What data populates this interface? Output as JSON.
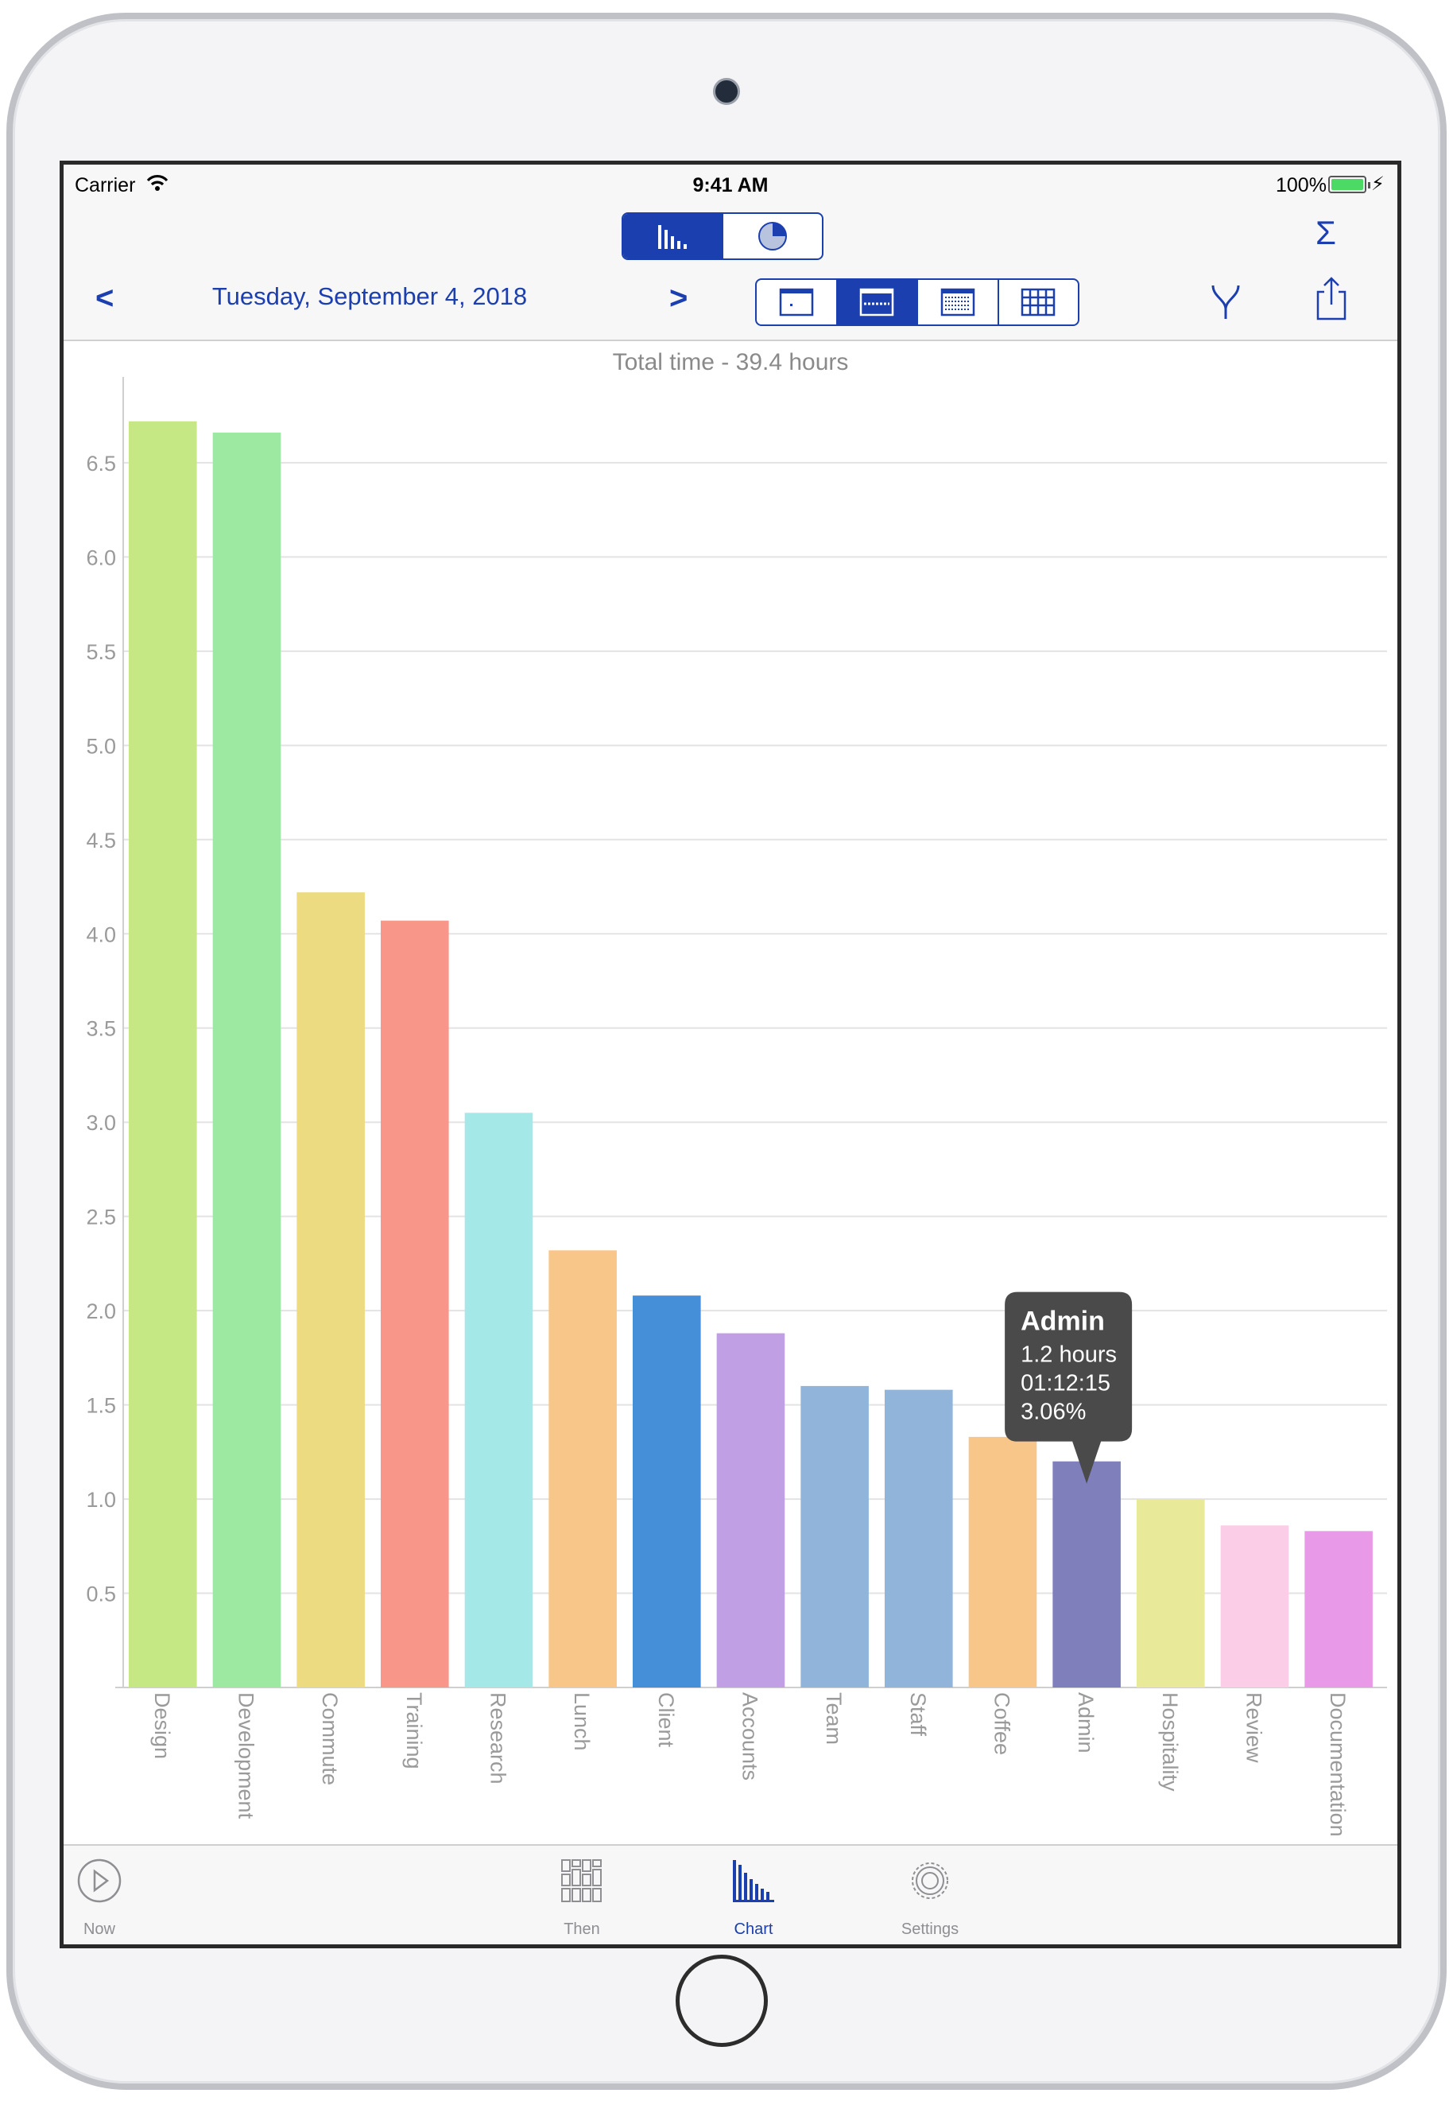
{
  "status_bar": {
    "carrier": "Carrier",
    "time": "9:41 AM",
    "battery": "100%"
  },
  "toolbar": {
    "view_toggle": [
      {
        "name": "bar-chart-icon",
        "active": true
      },
      {
        "name": "pie-chart-icon",
        "active": false
      }
    ],
    "sum_icon": "Σ",
    "prev_label": "<",
    "next_label": ">",
    "date": "Tuesday, September 4, 2018",
    "period_selector": [
      {
        "name": "day-period-icon",
        "active": false
      },
      {
        "name": "week-period-icon",
        "active": true
      },
      {
        "name": "month-period-icon",
        "active": false
      },
      {
        "name": "year-period-icon",
        "active": false
      }
    ],
    "filter_icon": "filter-icon",
    "share_icon": "share-icon"
  },
  "chart_data": {
    "type": "bar",
    "title": "Total time - 39.4 hours",
    "categories": [
      "Design",
      "Development",
      "Commute",
      "Training",
      "Research",
      "Lunch",
      "Client",
      "Accounts",
      "Team",
      "Staff",
      "Coffee",
      "Admin",
      "Hospitality",
      "Review",
      "Documentation"
    ],
    "values": [
      6.72,
      6.66,
      4.22,
      4.07,
      3.05,
      2.32,
      2.08,
      1.88,
      1.6,
      1.58,
      1.33,
      1.2,
      1.0,
      0.86,
      0.83
    ],
    "colors": [
      "#c5e884",
      "#9de9a2",
      "#ecdb80",
      "#f8968a",
      "#a4e9e7",
      "#f9c68a",
      "#448fd8",
      "#c19fe4",
      "#90b4da",
      "#90b4da",
      "#f9c68a",
      "#7f7fbb",
      "#e9e99a",
      "#fccde7",
      "#e89ae8"
    ],
    "ylim": [
      0,
      6.85
    ],
    "yticks": [
      "0.5",
      "1.0",
      "1.5",
      "2.0",
      "2.5",
      "3.0",
      "3.5",
      "4.0",
      "4.5",
      "5.0",
      "5.5",
      "6.0",
      "6.5"
    ],
    "grid": true,
    "tooltip": {
      "category": "Admin",
      "title": "Admin",
      "lines": [
        "1.2 hours",
        "01:12:15",
        "3.06%"
      ]
    }
  },
  "tabbar": {
    "items": [
      {
        "name": "Now",
        "icon": "play-icon",
        "active": false
      },
      {
        "name": "Then",
        "icon": "grid-icon",
        "active": false
      },
      {
        "name": "Chart",
        "icon": "bar-chart-icon",
        "active": true
      },
      {
        "name": "Settings",
        "icon": "gear-icon",
        "active": false
      }
    ]
  }
}
